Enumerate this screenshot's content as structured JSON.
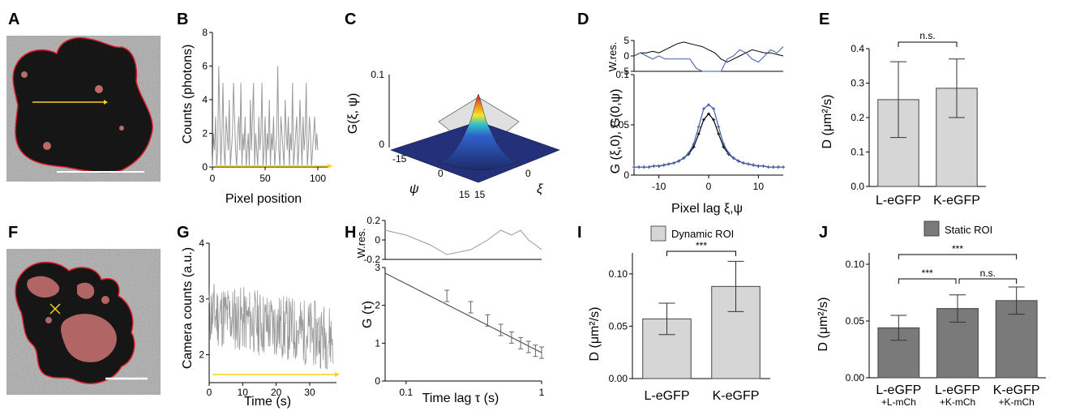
{
  "panel_letters": [
    "A",
    "B",
    "C",
    "D",
    "E",
    "F",
    "G",
    "H",
    "I",
    "J"
  ],
  "colors": {
    "cell_outline": "#e0202a",
    "scan_line": "#f2d21b",
    "trace": "#9a9a9a",
    "bar_light": "#d6d6d6",
    "bar_dark": "#7a7a7a",
    "blue": "#3b5ba8"
  },
  "chart_data": [
    {
      "id": "B",
      "type": "line",
      "xlabel": "Pixel position",
      "ylabel": "Counts (photons)",
      "xlim": [
        0,
        110
      ],
      "ylim": [
        0,
        8
      ],
      "xticks": [
        "0",
        "50",
        "100"
      ],
      "yticks": [
        "0",
        "2",
        "4",
        "6",
        "8"
      ],
      "series": [
        {
          "values": [
            0,
            2,
            1,
            3,
            0,
            1,
            6,
            3,
            0,
            2,
            5,
            1,
            0,
            3,
            2,
            1,
            4,
            0,
            1,
            2,
            5,
            3,
            1,
            0,
            2,
            3,
            1,
            5,
            0,
            2,
            1,
            3,
            0,
            1,
            2,
            0,
            4,
            1,
            3,
            5,
            0,
            2,
            1,
            0,
            3,
            1,
            2,
            5,
            0,
            1,
            3,
            0,
            2,
            1,
            4,
            0,
            2,
            1,
            3,
            0,
            1,
            2,
            6,
            1,
            0,
            3,
            2,
            1,
            0,
            4,
            2,
            1,
            3,
            0,
            2,
            1,
            5,
            0,
            1,
            2,
            3,
            0,
            1,
            4,
            2,
            0,
            3,
            1,
            2,
            5,
            0,
            1,
            3,
            2,
            0,
            1,
            2,
            3,
            1,
            2,
            1
          ]
        }
      ]
    },
    {
      "id": "C",
      "type": "surface",
      "zlabel": "G(ξ, ψ)",
      "xlabel": "ξ",
      "ylabel": "ψ",
      "zticks": [
        "0",
        "0.1"
      ],
      "xticks": [
        "15",
        "0"
      ],
      "yticks": [
        "-15",
        "0",
        "15"
      ]
    },
    {
      "id": "D",
      "type": "line",
      "xlabel": "Pixel lag ξ,ψ",
      "ylabel": "G (ξ,0), G(0,ψ)",
      "xlim": [
        -15,
        15
      ],
      "ylim": [
        0,
        0.1
      ],
      "xticks": [
        "-10",
        "0",
        "10"
      ],
      "yticks": [
        "0",
        "0.05",
        "0.1"
      ],
      "residual_label": "W.res.",
      "residual_ticks": [
        "5",
        "0",
        "-5"
      ],
      "x": [
        -15,
        -14,
        -13,
        -12,
        -11,
        -10,
        -9,
        -8,
        -7,
        -6,
        -5,
        -4,
        -3,
        -2,
        -1,
        0,
        1,
        2,
        3,
        4,
        5,
        6,
        7,
        8,
        9,
        10,
        11,
        12,
        13,
        14,
        15
      ],
      "series": [
        {
          "values": [
            0.008,
            0.008,
            0.008,
            0.008,
            0.009,
            0.009,
            0.01,
            0.011,
            0.012,
            0.014,
            0.017,
            0.021,
            0.028,
            0.041,
            0.055,
            0.061,
            0.055,
            0.041,
            0.028,
            0.021,
            0.017,
            0.014,
            0.012,
            0.011,
            0.01,
            0.009,
            0.009,
            0.008,
            0.008,
            0.008,
            0.008
          ]
        },
        {
          "values": [
            0.008,
            0.008,
            0.008,
            0.008,
            0.009,
            0.009,
            0.01,
            0.011,
            0.012,
            0.014,
            0.017,
            0.022,
            0.031,
            0.048,
            0.066,
            0.07,
            0.066,
            0.048,
            0.031,
            0.022,
            0.017,
            0.014,
            0.012,
            0.011,
            0.01,
            0.009,
            0.009,
            0.008,
            0.008,
            0.008,
            0.008
          ]
        }
      ]
    },
    {
      "id": "E",
      "type": "bar",
      "categories": [
        "L-eGFP",
        "K-eGFP"
      ],
      "values": [
        0.252,
        0.285
      ],
      "errors": [
        0.11,
        0.085
      ],
      "ylabel": "D (μm²/s)",
      "ylim": [
        0,
        0.4
      ],
      "yticks": [
        "0.0",
        "0.1",
        "0.2",
        "0.3",
        "0.4"
      ],
      "significance": "n.s."
    },
    {
      "id": "G",
      "type": "line",
      "xlabel": "Time (s)",
      "ylabel": "Camera counts (a.u.)",
      "xlim": [
        0,
        38
      ],
      "ylim": [
        1.5,
        4
      ],
      "xticks": [
        "0",
        "10",
        "20",
        "30"
      ],
      "yticks": [
        "2",
        "3",
        "4"
      ]
    },
    {
      "id": "H",
      "type": "line",
      "xlabel": "Time lag τ (s)",
      "ylabel": "G (τ)",
      "xlim": [
        0.07,
        1
      ],
      "ylim": [
        0,
        3
      ],
      "xscale": "log",
      "xticks": [
        "0.1",
        "1"
      ],
      "yticks": [
        "0",
        "1",
        "2",
        "3"
      ],
      "residual_label": "W.res.",
      "residual_ticks": [
        "0.2",
        "0",
        "-0.2"
      ],
      "x": [
        0.2,
        0.3,
        0.4,
        0.5,
        0.6,
        0.7,
        0.8,
        0.9,
        1.0
      ],
      "series": [
        {
          "values": [
            2.25,
            1.95,
            1.6,
            1.35,
            1.15,
            1.0,
            0.9,
            0.8,
            0.75
          ]
        }
      ]
    },
    {
      "id": "I",
      "type": "bar",
      "categories": [
        "L-eGFP",
        "K-eGFP"
      ],
      "values": [
        0.057,
        0.088
      ],
      "errors": [
        0.015,
        0.024
      ],
      "ylabel": "D (μm²/s)",
      "ylim": [
        0,
        0.12
      ],
      "yticks": [
        "0.00",
        "0.05",
        "0.10"
      ],
      "legend": "Dynamic ROI",
      "significance": "***"
    },
    {
      "id": "J",
      "type": "bar",
      "categories": [
        "L-eGFP +L-mCh",
        "L-eGFP +K-mCh",
        "K-eGFP +K-mCh"
      ],
      "category_main": [
        "L-eGFP",
        "L-eGFP",
        "K-eGFP"
      ],
      "category_sub": [
        "+L-mCh",
        "+K-mCh",
        "+K-mCh"
      ],
      "values": [
        0.044,
        0.061,
        0.068
      ],
      "errors": [
        0.011,
        0.012,
        0.012
      ],
      "ylabel": "D (μm²/s)",
      "ylim": [
        0,
        0.11
      ],
      "yticks": [
        "0.00",
        "0.05",
        "0.10"
      ],
      "legend": "Static ROI",
      "significance": [
        "***",
        "***",
        "n.s."
      ]
    }
  ]
}
